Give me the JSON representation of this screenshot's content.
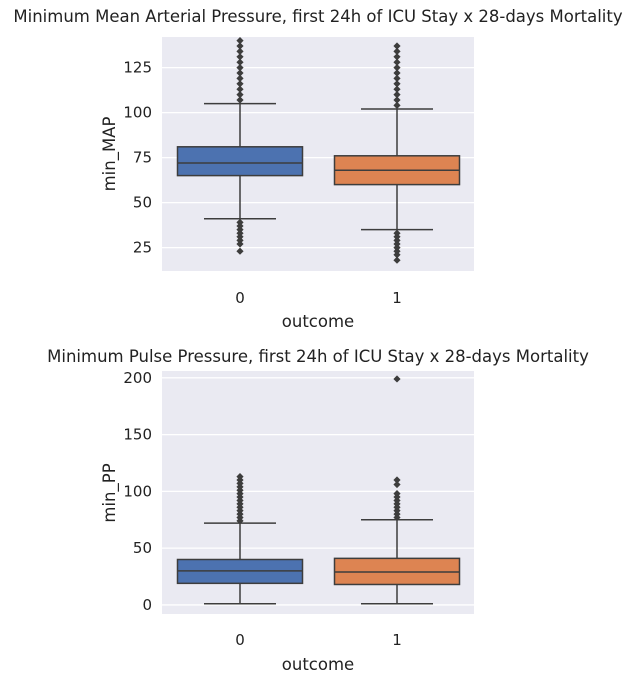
{
  "chart_data": [
    {
      "type": "box",
      "title": "Minimum Mean Arterial Pressure, first 24h of ICU Stay x 28-days Mortality",
      "xlabel": "outcome",
      "ylabel": "min_MAP",
      "categories": [
        "0",
        "1"
      ],
      "yticks": [
        25,
        50,
        75,
        100,
        125
      ],
      "ylim": [
        12,
        142
      ],
      "grid": true,
      "colors": [
        "#4c72b0",
        "#dd8452"
      ],
      "boxes": [
        {
          "category": "0",
          "whisker_low": 41,
          "q1": 65,
          "median": 72,
          "q3": 81,
          "whisker_high": 105,
          "fliers": [
            23,
            27,
            29,
            31,
            33,
            35,
            37,
            39,
            107,
            110,
            113,
            116,
            119,
            122,
            125,
            128,
            131,
            134,
            137,
            140
          ]
        },
        {
          "category": "1",
          "whisker_low": 35,
          "q1": 60,
          "median": 68,
          "q3": 76,
          "whisker_high": 102,
          "fliers": [
            18,
            21,
            23,
            25,
            27,
            29,
            31,
            33,
            104,
            107,
            110,
            113,
            116,
            119,
            122,
            125,
            128,
            131,
            134,
            137
          ]
        }
      ]
    },
    {
      "type": "box",
      "title": "Minimum Pulse Pressure, first 24h of ICU Stay x 28-days Mortality",
      "xlabel": "outcome",
      "ylabel": "min_PP",
      "categories": [
        "0",
        "1"
      ],
      "yticks": [
        0,
        50,
        100,
        150,
        200
      ],
      "ylim": [
        -8,
        206
      ],
      "grid": true,
      "colors": [
        "#4c72b0",
        "#dd8452"
      ],
      "boxes": [
        {
          "category": "0",
          "whisker_low": 1,
          "q1": 19,
          "median": 30,
          "q3": 40,
          "whisker_high": 72,
          "fliers": [
            74,
            77,
            80,
            83,
            86,
            89,
            92,
            95,
            98,
            101,
            104,
            107,
            110,
            113
          ]
        },
        {
          "category": "1",
          "whisker_low": 1,
          "q1": 18,
          "median": 29,
          "q3": 41,
          "whisker_high": 75,
          "fliers": [
            77,
            80,
            83,
            86,
            89,
            92,
            95,
            98,
            106,
            110,
            199
          ]
        }
      ]
    }
  ]
}
